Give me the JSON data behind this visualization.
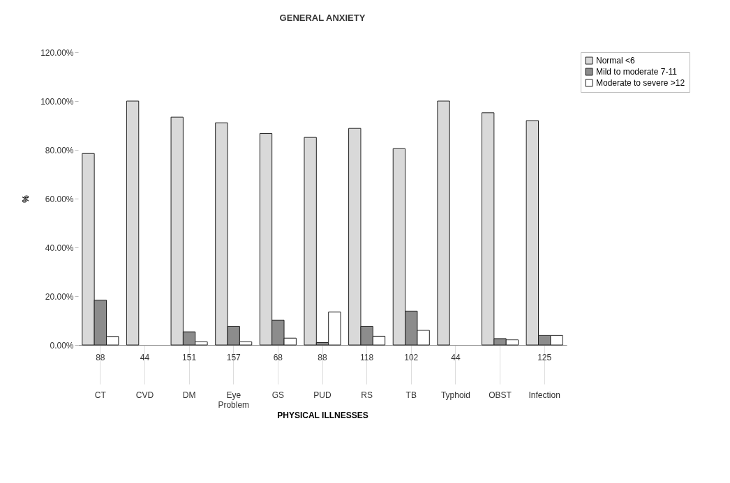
{
  "chart_data": {
    "type": "bar",
    "title": "GENERAL ANXIETY",
    "xlabel": "PHYSICAL ILLNESSES",
    "ylabel": "%",
    "categories": [
      "CT",
      "CVD",
      "DM",
      "Eye Problem",
      "GS",
      "PUD",
      "RS",
      "TB",
      "Typhoid",
      "OBST",
      "Infection"
    ],
    "series": [
      {
        "name": "Normal <6",
        "color": "#d9d9d9",
        "values": [
          78.5,
          100,
          93.4,
          91.1,
          86.7,
          85.1,
          88.8,
          80.5,
          100,
          95.2,
          92.0
        ]
      },
      {
        "name": "Mild to moderate 7-11",
        "color": "#8c8c8c",
        "values": [
          18.4,
          0,
          5.4,
          7.6,
          10.2,
          1.0,
          7.6,
          13.9,
          0,
          2.6,
          3.9
        ]
      },
      {
        "name": "Moderate to severe >12",
        "color": "#ffffff",
        "values": [
          3.5,
          0,
          1.3,
          1.3,
          2.8,
          13.5,
          3.6,
          6.0,
          0,
          2.1,
          3.9
        ]
      }
    ],
    "ylim": [
      0,
      120
    ],
    "yticks": [
      {
        "value": 0,
        "label": "0.00%"
      },
      {
        "value": 20,
        "label": "20.00%"
      },
      {
        "value": 40,
        "label": "40.00%"
      },
      {
        "value": 60,
        "label": "60.00%"
      },
      {
        "value": 80,
        "label": "80.00%"
      },
      {
        "value": 100,
        "label": "100.00%"
      },
      {
        "value": 120,
        "label": "120.00%"
      }
    ],
    "annotations": [
      {
        "text": "88",
        "x": "CT"
      },
      {
        "text": "44",
        "x": "CVD"
      },
      {
        "text": "151",
        "x": "DM"
      },
      {
        "text": "157",
        "x": "Eye Problem"
      },
      {
        "text": "68",
        "x": "GS"
      },
      {
        "text": "88",
        "x": "PUD"
      },
      {
        "text": "118",
        "x": "RS"
      },
      {
        "text": "102",
        "x": "TB"
      },
      {
        "text": "44",
        "x": "Typhoid"
      },
      {
        "text": "125",
        "x": "Infection"
      }
    ],
    "grid": false,
    "legend": "right"
  }
}
